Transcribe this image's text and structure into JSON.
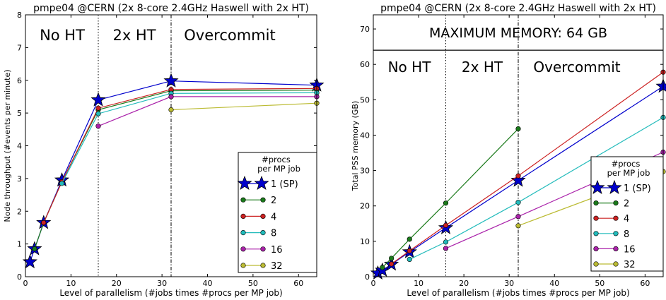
{
  "chart_data": [
    {
      "type": "line",
      "title": "pmpe04 @CERN (2x 8-core 2.4GHz Haswell with 2x HT)",
      "xlabel": "Level of parallelism (#jobs times #procs per MP job)",
      "ylabel": "Node throughput (#events per minute)",
      "xlim": [
        0,
        64
      ],
      "ylim": [
        0,
        8
      ],
      "xticks": [
        "0",
        "10",
        "20",
        "30",
        "40",
        "50",
        "60"
      ],
      "yticks": [
        "0",
        "1",
        "2",
        "3",
        "4",
        "5",
        "6",
        "7",
        "8"
      ],
      "region_labels": [
        "No HT",
        "2x HT",
        "Overcommit"
      ],
      "vlines": [
        16,
        32
      ],
      "legend": {
        "title_line1": "#procs",
        "title_line2": "per MP job",
        "placement": "lower-right"
      },
      "series": [
        {
          "name": "1 (SP)",
          "color": "#0000cc",
          "marker": "star",
          "x": [
            1,
            2,
            4,
            8,
            16,
            32,
            64
          ],
          "y": [
            0.45,
            0.85,
            1.65,
            2.95,
            5.4,
            5.98,
            5.85
          ]
        },
        {
          "name": "2",
          "color": "#1a7a1a",
          "marker": "circle",
          "x": [
            2,
            4,
            8,
            16,
            32,
            64
          ],
          "y": [
            0.85,
            1.65,
            2.9,
            5.1,
            5.68,
            5.7
          ]
        },
        {
          "name": "4",
          "color": "#cc2222",
          "marker": "circle",
          "x": [
            4,
            8,
            16,
            32,
            64
          ],
          "y": [
            1.65,
            2.9,
            5.15,
            5.72,
            5.75
          ]
        },
        {
          "name": "8",
          "color": "#22bbbb",
          "marker": "circle",
          "x": [
            8,
            16,
            32,
            64
          ],
          "y": [
            2.85,
            4.98,
            5.6,
            5.62
          ]
        },
        {
          "name": "16",
          "color": "#aa22aa",
          "marker": "circle",
          "x": [
            16,
            32,
            64
          ],
          "y": [
            4.6,
            5.5,
            5.5
          ]
        },
        {
          "name": "32",
          "color": "#bbbb33",
          "marker": "circle",
          "x": [
            32,
            64
          ],
          "y": [
            5.1,
            5.3
          ]
        }
      ]
    },
    {
      "type": "line",
      "title": "pmpe04 @CERN (2x 8-core 2.4GHz Haswell with 2x HT)",
      "xlabel": "Level of parallelism (#jobs times #procs per MP job)",
      "ylabel": "Total PSS memory (GB)",
      "xlim": [
        0,
        64
      ],
      "ylim": [
        0,
        74
      ],
      "xticks": [
        "0",
        "10",
        "20",
        "30",
        "40",
        "50",
        "60"
      ],
      "yticks": [
        "0",
        "10",
        "20",
        "30",
        "40",
        "50",
        "60",
        "70"
      ],
      "hline": 64,
      "hline_label": "MAXIMUM MEMORY: 64 GB",
      "region_labels": [
        "No HT",
        "2x HT",
        "Overcommit"
      ],
      "vlines": [
        16,
        32
      ],
      "legend": {
        "title_line1": "#procs",
        "title_line2": "per MP job",
        "placement": "lower-right"
      },
      "series": [
        {
          "name": "1 (SP)",
          "color": "#0000cc",
          "marker": "star",
          "x": [
            1,
            2,
            4,
            8,
            16,
            32,
            64
          ],
          "y": [
            1.0,
            1.8,
            3.5,
            7.0,
            13.8,
            27.2,
            53.8
          ]
        },
        {
          "name": "2",
          "color": "#1a7a1a",
          "marker": "circle",
          "x": [
            2,
            4,
            8,
            16,
            32
          ],
          "y": [
            2.6,
            5.2,
            10.6,
            20.8,
            41.8
          ]
        },
        {
          "name": "4",
          "color": "#cc2222",
          "marker": "circle",
          "x": [
            4,
            8,
            16,
            32,
            64
          ],
          "y": [
            3.6,
            7.3,
            14.5,
            28.5,
            57.8
          ]
        },
        {
          "name": "8",
          "color": "#22bbbb",
          "marker": "circle",
          "x": [
            8,
            16,
            32,
            64
          ],
          "y": [
            4.9,
            9.8,
            21.0,
            45.0
          ]
        },
        {
          "name": "16",
          "color": "#aa22aa",
          "marker": "circle",
          "x": [
            16,
            32,
            64
          ],
          "y": [
            8.0,
            17.0,
            35.2
          ]
        },
        {
          "name": "32",
          "color": "#bbbb33",
          "marker": "circle",
          "x": [
            32,
            64
          ],
          "y": [
            14.4,
            29.7
          ]
        }
      ]
    }
  ]
}
